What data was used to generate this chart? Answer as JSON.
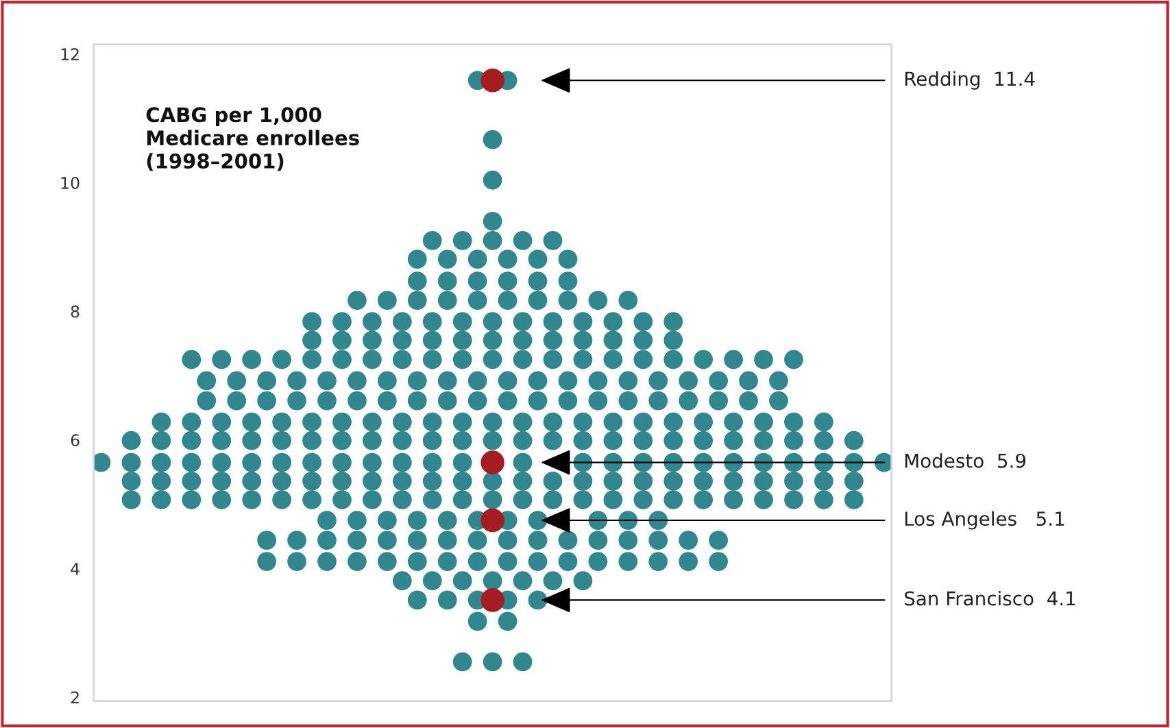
{
  "chart_data": {
    "type": "scatter",
    "title": "CABG per 1,000\nMedicare enrollees\n(1998–2001)",
    "categories": [
      null,
      null,
      null,
      null,
      null,
      null,
      null,
      null,
      null,
      null,
      null,
      null,
      null,
      null,
      null,
      null,
      null,
      null,
      null,
      null,
      null,
      null,
      null,
      null,
      null,
      null,
      null,
      null,
      null,
      null,
      null,
      null,
      null,
      null,
      null,
      null,
      null,
      null,
      null,
      null,
      null,
      null,
      null,
      null,
      null,
      null,
      null,
      null,
      null,
      null,
      null,
      null,
      null
    ],
    "series": [
      {
        "color": "#32878f",
        "values": [
          null,
          null,
          null,
          null,
          null,
          null,
          null,
          null,
          null,
          null,
          null,
          null,
          null,
          null,
          null,
          null,
          null,
          null,
          null,
          null,
          null,
          null,
          null,
          null,
          null,
          11.59,
          null,
          11.59,
          null,
          null,
          null,
          null,
          null,
          null,
          null,
          null,
          null,
          null,
          null,
          null,
          null,
          null,
          null,
          null,
          null,
          null,
          null,
          null,
          null,
          null,
          null,
          null,
          null
        ]
      },
      {
        "color": "#32878f",
        "values": [
          null,
          null,
          null,
          null,
          null,
          null,
          null,
          null,
          null,
          null,
          null,
          null,
          null,
          null,
          null,
          null,
          null,
          null,
          null,
          null,
          null,
          null,
          null,
          null,
          null,
          null,
          10.67,
          null,
          null,
          null,
          null,
          null,
          null,
          null,
          null,
          null,
          null,
          null,
          null,
          null,
          null,
          null,
          null,
          null,
          null,
          null,
          null,
          null,
          null,
          null,
          null,
          null,
          null
        ]
      },
      {
        "color": "#32878f",
        "values": [
          null,
          null,
          null,
          null,
          null,
          null,
          null,
          null,
          null,
          null,
          null,
          null,
          null,
          null,
          null,
          null,
          null,
          null,
          null,
          null,
          null,
          null,
          null,
          null,
          null,
          null,
          10.04,
          null,
          null,
          null,
          null,
          null,
          null,
          null,
          null,
          null,
          null,
          null,
          null,
          null,
          null,
          null,
          null,
          null,
          null,
          null,
          null,
          null,
          null,
          null,
          null,
          null,
          null
        ]
      },
      {
        "color": "#32878f",
        "values": [
          null,
          null,
          null,
          null,
          null,
          null,
          null,
          null,
          null,
          null,
          null,
          null,
          null,
          null,
          null,
          null,
          null,
          null,
          null,
          null,
          null,
          null,
          null,
          null,
          null,
          null,
          9.4,
          null,
          null,
          null,
          null,
          null,
          null,
          null,
          null,
          null,
          null,
          null,
          null,
          null,
          null,
          null,
          null,
          null,
          null,
          null,
          null,
          null,
          null,
          null,
          null,
          null,
          null
        ]
      },
      {
        "color": "#32878f",
        "values": [
          null,
          null,
          null,
          null,
          null,
          null,
          null,
          null,
          null,
          null,
          null,
          null,
          null,
          null,
          null,
          null,
          null,
          null,
          null,
          null,
          null,
          null,
          9.1,
          null,
          9.1,
          null,
          9.1,
          null,
          9.1,
          null,
          9.1,
          null,
          null,
          null,
          null,
          null,
          null,
          null,
          null,
          null,
          null,
          null,
          null,
          null,
          null,
          null,
          null,
          null,
          null,
          null,
          null,
          null,
          null
        ]
      },
      {
        "color": "#32878f",
        "values": [
          null,
          null,
          null,
          null,
          null,
          null,
          null,
          null,
          null,
          null,
          null,
          null,
          null,
          null,
          null,
          null,
          null,
          null,
          null,
          null,
          null,
          8.81,
          null,
          8.81,
          null,
          8.81,
          null,
          8.81,
          null,
          8.81,
          null,
          8.81,
          null,
          null,
          null,
          null,
          null,
          null,
          null,
          null,
          null,
          null,
          null,
          null,
          null,
          null,
          null,
          null,
          null,
          null,
          null,
          null,
          null
        ]
      },
      {
        "color": "#32878f",
        "values": [
          null,
          null,
          null,
          null,
          null,
          null,
          null,
          null,
          null,
          null,
          null,
          null,
          null,
          null,
          null,
          null,
          null,
          null,
          null,
          null,
          null,
          8.47,
          null,
          8.47,
          null,
          8.47,
          null,
          8.47,
          null,
          8.47,
          null,
          8.47,
          null,
          null,
          null,
          null,
          null,
          null,
          null,
          null,
          null,
          null,
          null,
          null,
          null,
          null,
          null,
          null,
          null,
          null,
          null,
          null,
          null
        ]
      },
      {
        "color": "#32878f",
        "values": [
          null,
          null,
          null,
          null,
          null,
          null,
          null,
          null,
          null,
          null,
          null,
          null,
          null,
          null,
          null,
          null,
          null,
          8.17,
          null,
          8.17,
          null,
          8.17,
          null,
          8.17,
          null,
          8.17,
          null,
          8.17,
          null,
          8.17,
          null,
          8.17,
          null,
          8.17,
          null,
          8.17,
          null,
          null,
          null,
          null,
          null,
          null,
          null,
          null,
          null,
          null,
          null,
          null,
          null,
          null,
          null,
          null,
          null
        ]
      },
      {
        "color": "#32878f",
        "values": [
          null,
          null,
          null,
          null,
          null,
          null,
          null,
          null,
          null,
          null,
          null,
          null,
          null,
          null,
          7.84,
          null,
          7.84,
          null,
          7.84,
          null,
          7.84,
          null,
          7.84,
          null,
          7.84,
          null,
          7.84,
          null,
          7.84,
          null,
          7.84,
          null,
          7.84,
          null,
          7.84,
          null,
          7.84,
          null,
          7.84,
          null,
          null,
          null,
          null,
          null,
          null,
          null,
          null,
          null,
          null,
          null,
          null,
          null,
          null
        ]
      },
      {
        "color": "#32878f",
        "values": [
          null,
          null,
          null,
          null,
          null,
          null,
          null,
          null,
          null,
          null,
          null,
          null,
          null,
          null,
          7.55,
          null,
          7.55,
          null,
          7.55,
          null,
          7.55,
          null,
          7.55,
          null,
          7.55,
          null,
          7.55,
          null,
          7.55,
          null,
          7.55,
          null,
          7.55,
          null,
          7.55,
          null,
          7.55,
          null,
          7.55,
          null,
          null,
          null,
          null,
          null,
          null,
          null,
          null,
          null,
          null,
          null,
          null,
          null,
          null
        ]
      },
      {
        "color": "#32878f",
        "values": [
          null,
          null,
          null,
          null,
          null,
          null,
          7.25,
          null,
          7.25,
          null,
          7.25,
          null,
          7.25,
          null,
          7.25,
          null,
          7.25,
          null,
          7.25,
          null,
          7.25,
          null,
          7.25,
          null,
          7.25,
          null,
          7.25,
          null,
          7.25,
          null,
          7.25,
          null,
          7.25,
          null,
          7.25,
          null,
          7.25,
          null,
          7.25,
          null,
          7.25,
          null,
          7.25,
          null,
          7.25,
          null,
          7.25,
          null,
          null,
          null,
          null,
          null,
          null
        ]
      },
      {
        "color": "#32878f",
        "values": [
          null,
          null,
          null,
          null,
          null,
          null,
          null,
          6.92,
          null,
          6.92,
          null,
          6.92,
          null,
          6.92,
          null,
          6.92,
          null,
          6.92,
          null,
          6.92,
          null,
          6.92,
          null,
          6.92,
          null,
          6.92,
          null,
          6.92,
          null,
          6.92,
          null,
          6.92,
          null,
          6.92,
          null,
          6.92,
          null,
          6.92,
          null,
          6.92,
          null,
          6.92,
          null,
          6.92,
          null,
          6.92,
          null,
          null,
          null,
          null,
          null,
          null,
          null
        ]
      },
      {
        "color": "#32878f",
        "values": [
          null,
          null,
          null,
          null,
          null,
          null,
          null,
          6.61,
          null,
          6.61,
          null,
          6.61,
          null,
          6.61,
          null,
          6.61,
          null,
          6.61,
          null,
          6.61,
          null,
          6.61,
          null,
          6.61,
          null,
          6.61,
          null,
          6.61,
          null,
          6.61,
          null,
          6.61,
          null,
          6.61,
          null,
          6.61,
          null,
          6.61,
          null,
          6.61,
          null,
          6.61,
          null,
          6.61,
          null,
          6.61,
          null,
          null,
          null,
          null,
          null,
          null,
          null
        ]
      },
      {
        "color": "#32878f",
        "values": [
          null,
          null,
          null,
          null,
          6.28,
          null,
          6.28,
          null,
          6.28,
          null,
          6.28,
          null,
          6.28,
          null,
          6.28,
          null,
          6.28,
          null,
          6.28,
          null,
          6.28,
          null,
          6.28,
          null,
          6.28,
          null,
          6.28,
          null,
          6.28,
          null,
          6.28,
          null,
          6.28,
          null,
          6.28,
          null,
          6.28,
          null,
          6.28,
          null,
          6.28,
          null,
          6.28,
          null,
          6.28,
          null,
          6.28,
          null,
          6.28,
          null,
          null,
          null,
          null
        ]
      },
      {
        "color": "#32878f",
        "values": [
          null,
          null,
          5.99,
          null,
          5.99,
          null,
          5.99,
          null,
          5.99,
          null,
          5.99,
          null,
          5.99,
          null,
          5.99,
          null,
          5.99,
          null,
          5.99,
          null,
          5.99,
          null,
          5.99,
          null,
          5.99,
          null,
          5.99,
          null,
          5.99,
          null,
          5.99,
          null,
          5.99,
          null,
          5.99,
          null,
          5.99,
          null,
          5.99,
          null,
          5.99,
          null,
          5.99,
          null,
          5.99,
          null,
          5.99,
          null,
          5.99,
          null,
          5.99,
          null,
          null
        ]
      },
      {
        "color": "#32878f",
        "values": [
          5.65,
          null,
          5.65,
          null,
          5.65,
          null,
          5.65,
          null,
          5.65,
          null,
          5.65,
          null,
          5.65,
          null,
          5.65,
          null,
          5.65,
          null,
          5.65,
          null,
          5.65,
          null,
          5.65,
          null,
          5.65,
          null,
          null,
          null,
          5.65,
          null,
          null,
          null,
          5.65,
          null,
          5.65,
          null,
          5.65,
          null,
          5.65,
          null,
          5.65,
          null,
          5.65,
          null,
          5.65,
          null,
          5.65,
          null,
          5.65,
          null,
          5.65,
          null,
          5.65
        ]
      },
      {
        "color": "#32878f",
        "values": [
          null,
          null,
          5.36,
          null,
          5.36,
          null,
          5.36,
          null,
          5.36,
          null,
          5.36,
          null,
          5.36,
          null,
          5.36,
          null,
          5.36,
          null,
          5.36,
          null,
          5.36,
          null,
          5.36,
          null,
          5.36,
          null,
          5.36,
          null,
          5.36,
          null,
          5.36,
          null,
          5.36,
          null,
          5.36,
          null,
          5.36,
          null,
          5.36,
          null,
          5.36,
          null,
          5.36,
          null,
          5.36,
          null,
          5.36,
          null,
          5.36,
          null,
          5.36,
          null,
          null
        ]
      },
      {
        "color": "#32878f",
        "values": [
          null,
          null,
          5.07,
          null,
          5.07,
          null,
          5.07,
          null,
          5.07,
          null,
          5.07,
          null,
          5.07,
          null,
          5.07,
          null,
          5.07,
          null,
          5.07,
          null,
          5.07,
          null,
          5.07,
          null,
          5.07,
          null,
          5.07,
          null,
          5.07,
          null,
          5.07,
          null,
          5.07,
          null,
          5.07,
          null,
          5.07,
          null,
          5.07,
          null,
          5.07,
          null,
          5.07,
          null,
          5.07,
          null,
          5.07,
          null,
          5.07,
          null,
          5.07,
          null,
          null
        ]
      },
      {
        "color": "#32878f",
        "values": [
          null,
          null,
          null,
          null,
          null,
          null,
          null,
          null,
          null,
          null,
          null,
          null,
          null,
          null,
          null,
          4.75,
          null,
          4.75,
          null,
          4.75,
          null,
          4.75,
          null,
          4.75,
          null,
          4.75,
          null,
          4.75,
          null,
          4.75,
          null,
          null,
          null,
          4.75,
          null,
          4.75,
          null,
          4.75,
          null,
          null,
          null,
          null,
          null,
          null,
          null,
          null,
          null,
          null,
          null,
          null,
          null,
          null,
          null
        ]
      },
      {
        "color": "#32878f",
        "values": [
          null,
          null,
          null,
          null,
          null,
          null,
          null,
          null,
          null,
          null,
          null,
          4.44,
          null,
          4.44,
          null,
          4.44,
          null,
          4.44,
          null,
          4.44,
          null,
          4.44,
          null,
          4.44,
          null,
          4.44,
          null,
          4.44,
          null,
          4.44,
          null,
          4.44,
          null,
          4.44,
          null,
          4.44,
          null,
          4.44,
          null,
          4.44,
          null,
          4.44,
          null,
          null,
          null,
          null,
          null,
          null,
          null,
          null,
          null,
          null,
          null
        ]
      },
      {
        "color": "#32878f",
        "values": [
          null,
          null,
          null,
          null,
          null,
          null,
          null,
          null,
          null,
          null,
          null,
          4.11,
          null,
          4.11,
          null,
          4.11,
          null,
          4.11,
          null,
          4.11,
          null,
          4.11,
          null,
          4.11,
          null,
          4.11,
          null,
          4.11,
          null,
          4.11,
          null,
          4.11,
          null,
          4.11,
          null,
          4.11,
          null,
          4.11,
          null,
          4.11,
          null,
          4.11,
          null,
          null,
          null,
          null,
          null,
          null,
          null,
          null,
          null,
          null,
          null
        ]
      },
      {
        "color": "#32878f",
        "values": [
          null,
          null,
          null,
          null,
          null,
          null,
          null,
          null,
          null,
          null,
          null,
          null,
          null,
          null,
          null,
          null,
          null,
          null,
          null,
          null,
          3.81,
          null,
          3.81,
          null,
          3.81,
          null,
          3.81,
          null,
          3.81,
          null,
          3.81,
          null,
          3.81,
          null,
          null,
          null,
          null,
          null,
          null,
          null,
          null,
          null,
          null,
          null,
          null,
          null,
          null,
          null,
          null,
          null,
          null,
          null,
          null
        ]
      },
      {
        "color": "#32878f",
        "values": [
          null,
          null,
          null,
          null,
          null,
          null,
          null,
          null,
          null,
          null,
          null,
          null,
          null,
          null,
          null,
          null,
          null,
          null,
          null,
          null,
          null,
          3.51,
          null,
          3.51,
          null,
          3.51,
          null,
          3.51,
          null,
          3.51,
          null,
          null,
          null,
          null,
          null,
          null,
          null,
          null,
          null,
          null,
          null,
          null,
          null,
          null,
          null,
          null,
          null,
          null,
          null,
          null,
          null,
          null,
          null
        ]
      },
      {
        "color": "#32878f",
        "values": [
          null,
          null,
          null,
          null,
          null,
          null,
          null,
          null,
          null,
          null,
          null,
          null,
          null,
          null,
          null,
          null,
          null,
          null,
          null,
          null,
          null,
          null,
          null,
          null,
          null,
          3.18,
          null,
          3.18,
          null,
          null,
          null,
          null,
          null,
          null,
          null,
          null,
          null,
          null,
          null,
          null,
          null,
          null,
          null,
          null,
          null,
          null,
          null,
          null,
          null,
          null,
          null,
          null,
          null
        ]
      },
      {
        "color": "#32878f",
        "values": [
          null,
          null,
          null,
          null,
          null,
          null,
          null,
          null,
          null,
          null,
          null,
          null,
          null,
          null,
          null,
          null,
          null,
          null,
          null,
          null,
          null,
          null,
          null,
          null,
          2.55,
          null,
          2.55,
          null,
          2.55,
          null,
          null,
          null,
          null,
          null,
          null,
          null,
          null,
          null,
          null,
          null,
          null,
          null,
          null,
          null,
          null,
          null,
          null,
          null,
          null,
          null,
          null,
          null,
          null
        ]
      },
      {
        "color": "#a51c22",
        "values": [
          null,
          null,
          null,
          null,
          null,
          null,
          null,
          null,
          null,
          null,
          null,
          null,
          null,
          null,
          null,
          null,
          null,
          null,
          null,
          null,
          null,
          null,
          null,
          null,
          null,
          null,
          11.59,
          null,
          null,
          null,
          null,
          null,
          null,
          null,
          null,
          null,
          null,
          null,
          null,
          null,
          null,
          null,
          null,
          null,
          null,
          null,
          null,
          null,
          null,
          null,
          null,
          null,
          null
        ]
      },
      {
        "color": "#a51c22",
        "values": [
          null,
          null,
          null,
          null,
          null,
          null,
          null,
          null,
          null,
          null,
          null,
          null,
          null,
          null,
          null,
          null,
          null,
          null,
          null,
          null,
          null,
          null,
          null,
          null,
          null,
          null,
          5.65,
          null,
          null,
          null,
          null,
          null,
          null,
          null,
          null,
          null,
          null,
          null,
          null,
          null,
          null,
          null,
          null,
          null,
          null,
          null,
          null,
          null,
          null,
          null,
          null,
          null,
          null
        ]
      },
      {
        "color": "#a51c22",
        "values": [
          null,
          null,
          null,
          null,
          null,
          null,
          null,
          null,
          null,
          null,
          null,
          null,
          null,
          null,
          null,
          null,
          null,
          null,
          null,
          null,
          null,
          null,
          null,
          null,
          null,
          null,
          4.75,
          null,
          null,
          null,
          null,
          null,
          null,
          null,
          null,
          null,
          null,
          null,
          null,
          null,
          null,
          null,
          null,
          null,
          null,
          null,
          null,
          null,
          null,
          null,
          null,
          null,
          null
        ]
      },
      {
        "color": "#a51c22",
        "values": [
          null,
          null,
          null,
          null,
          null,
          null,
          null,
          null,
          null,
          null,
          null,
          null,
          null,
          null,
          null,
          null,
          null,
          null,
          null,
          null,
          null,
          null,
          null,
          null,
          null,
          null,
          3.51,
          null,
          null,
          null,
          null,
          null,
          null,
          null,
          null,
          null,
          null,
          null,
          null,
          null,
          null,
          null,
          null,
          null,
          null,
          null,
          null,
          null,
          null,
          null,
          null,
          null,
          null
        ]
      }
    ],
    "annotations": [
      "Redding  11.4",
      "Modesto  5.9",
      "Los Angeles   5.1",
      "San Francisco  4.1"
    ],
    "ylim": [
      1.94,
      12.15
    ],
    "yticks": [
      2,
      4,
      6,
      8,
      10,
      12
    ],
    "tick_labels": "y",
    "grid": false,
    "legend": false,
    "marker": "circle"
  }
}
